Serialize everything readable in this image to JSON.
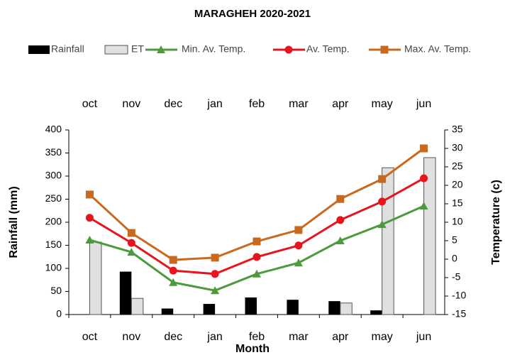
{
  "chart_data": {
    "type": "combo",
    "title": "MARAGHEH 2020-2021",
    "x_label": "Month",
    "y_label": "Rainfall (mm)",
    "y2_label": "Temperature (c)",
    "categories": [
      "oct",
      "nov",
      "dec",
      "jan",
      "feb",
      "mar",
      "apr",
      "may",
      "jun"
    ],
    "series": [
      {
        "name": "Rainfall",
        "type": "bar",
        "color": "#000000",
        "values": [
          0,
          93,
          13,
          23,
          37,
          32,
          29,
          9,
          0
        ]
      },
      {
        "name": "ET",
        "type": "bar",
        "color": "#e0e0e0",
        "values": [
          157,
          35,
          0,
          0,
          0,
          0,
          25,
          318,
          340
        ]
      },
      {
        "name": "Min. Av. Temp.",
        "type": "line",
        "axis": "y2",
        "marker": "triangle",
        "color": "#4c9a3c",
        "values": [
          5.2,
          1.9,
          -6.3,
          -8.5,
          -4.0,
          -1.0,
          5.0,
          9.4,
          14.4
        ]
      },
      {
        "name": "Av. Temp.",
        "type": "line",
        "axis": "y2",
        "marker": "circle",
        "color": "#e8141c",
        "values": [
          11.2,
          4.4,
          -3.1,
          -4.0,
          0.6,
          3.7,
          10.6,
          15.6,
          21.9
        ]
      },
      {
        "name": "Max. Av. Temp.",
        "type": "line",
        "axis": "y2",
        "marker": "square",
        "color": "#c8691e",
        "values": [
          17.5,
          7.1,
          -0.2,
          0.4,
          4.8,
          7.9,
          16.3,
          21.7,
          30.0
        ]
      }
    ],
    "ylim": [
      0,
      400
    ],
    "yticks": [
      0,
      50,
      100,
      150,
      200,
      250,
      300,
      350,
      400
    ],
    "y2lim": [
      -15,
      35
    ],
    "y2ticks": [
      -15,
      -10,
      -5,
      0,
      5,
      10,
      15,
      20,
      25,
      30,
      35
    ],
    "grid": false
  }
}
